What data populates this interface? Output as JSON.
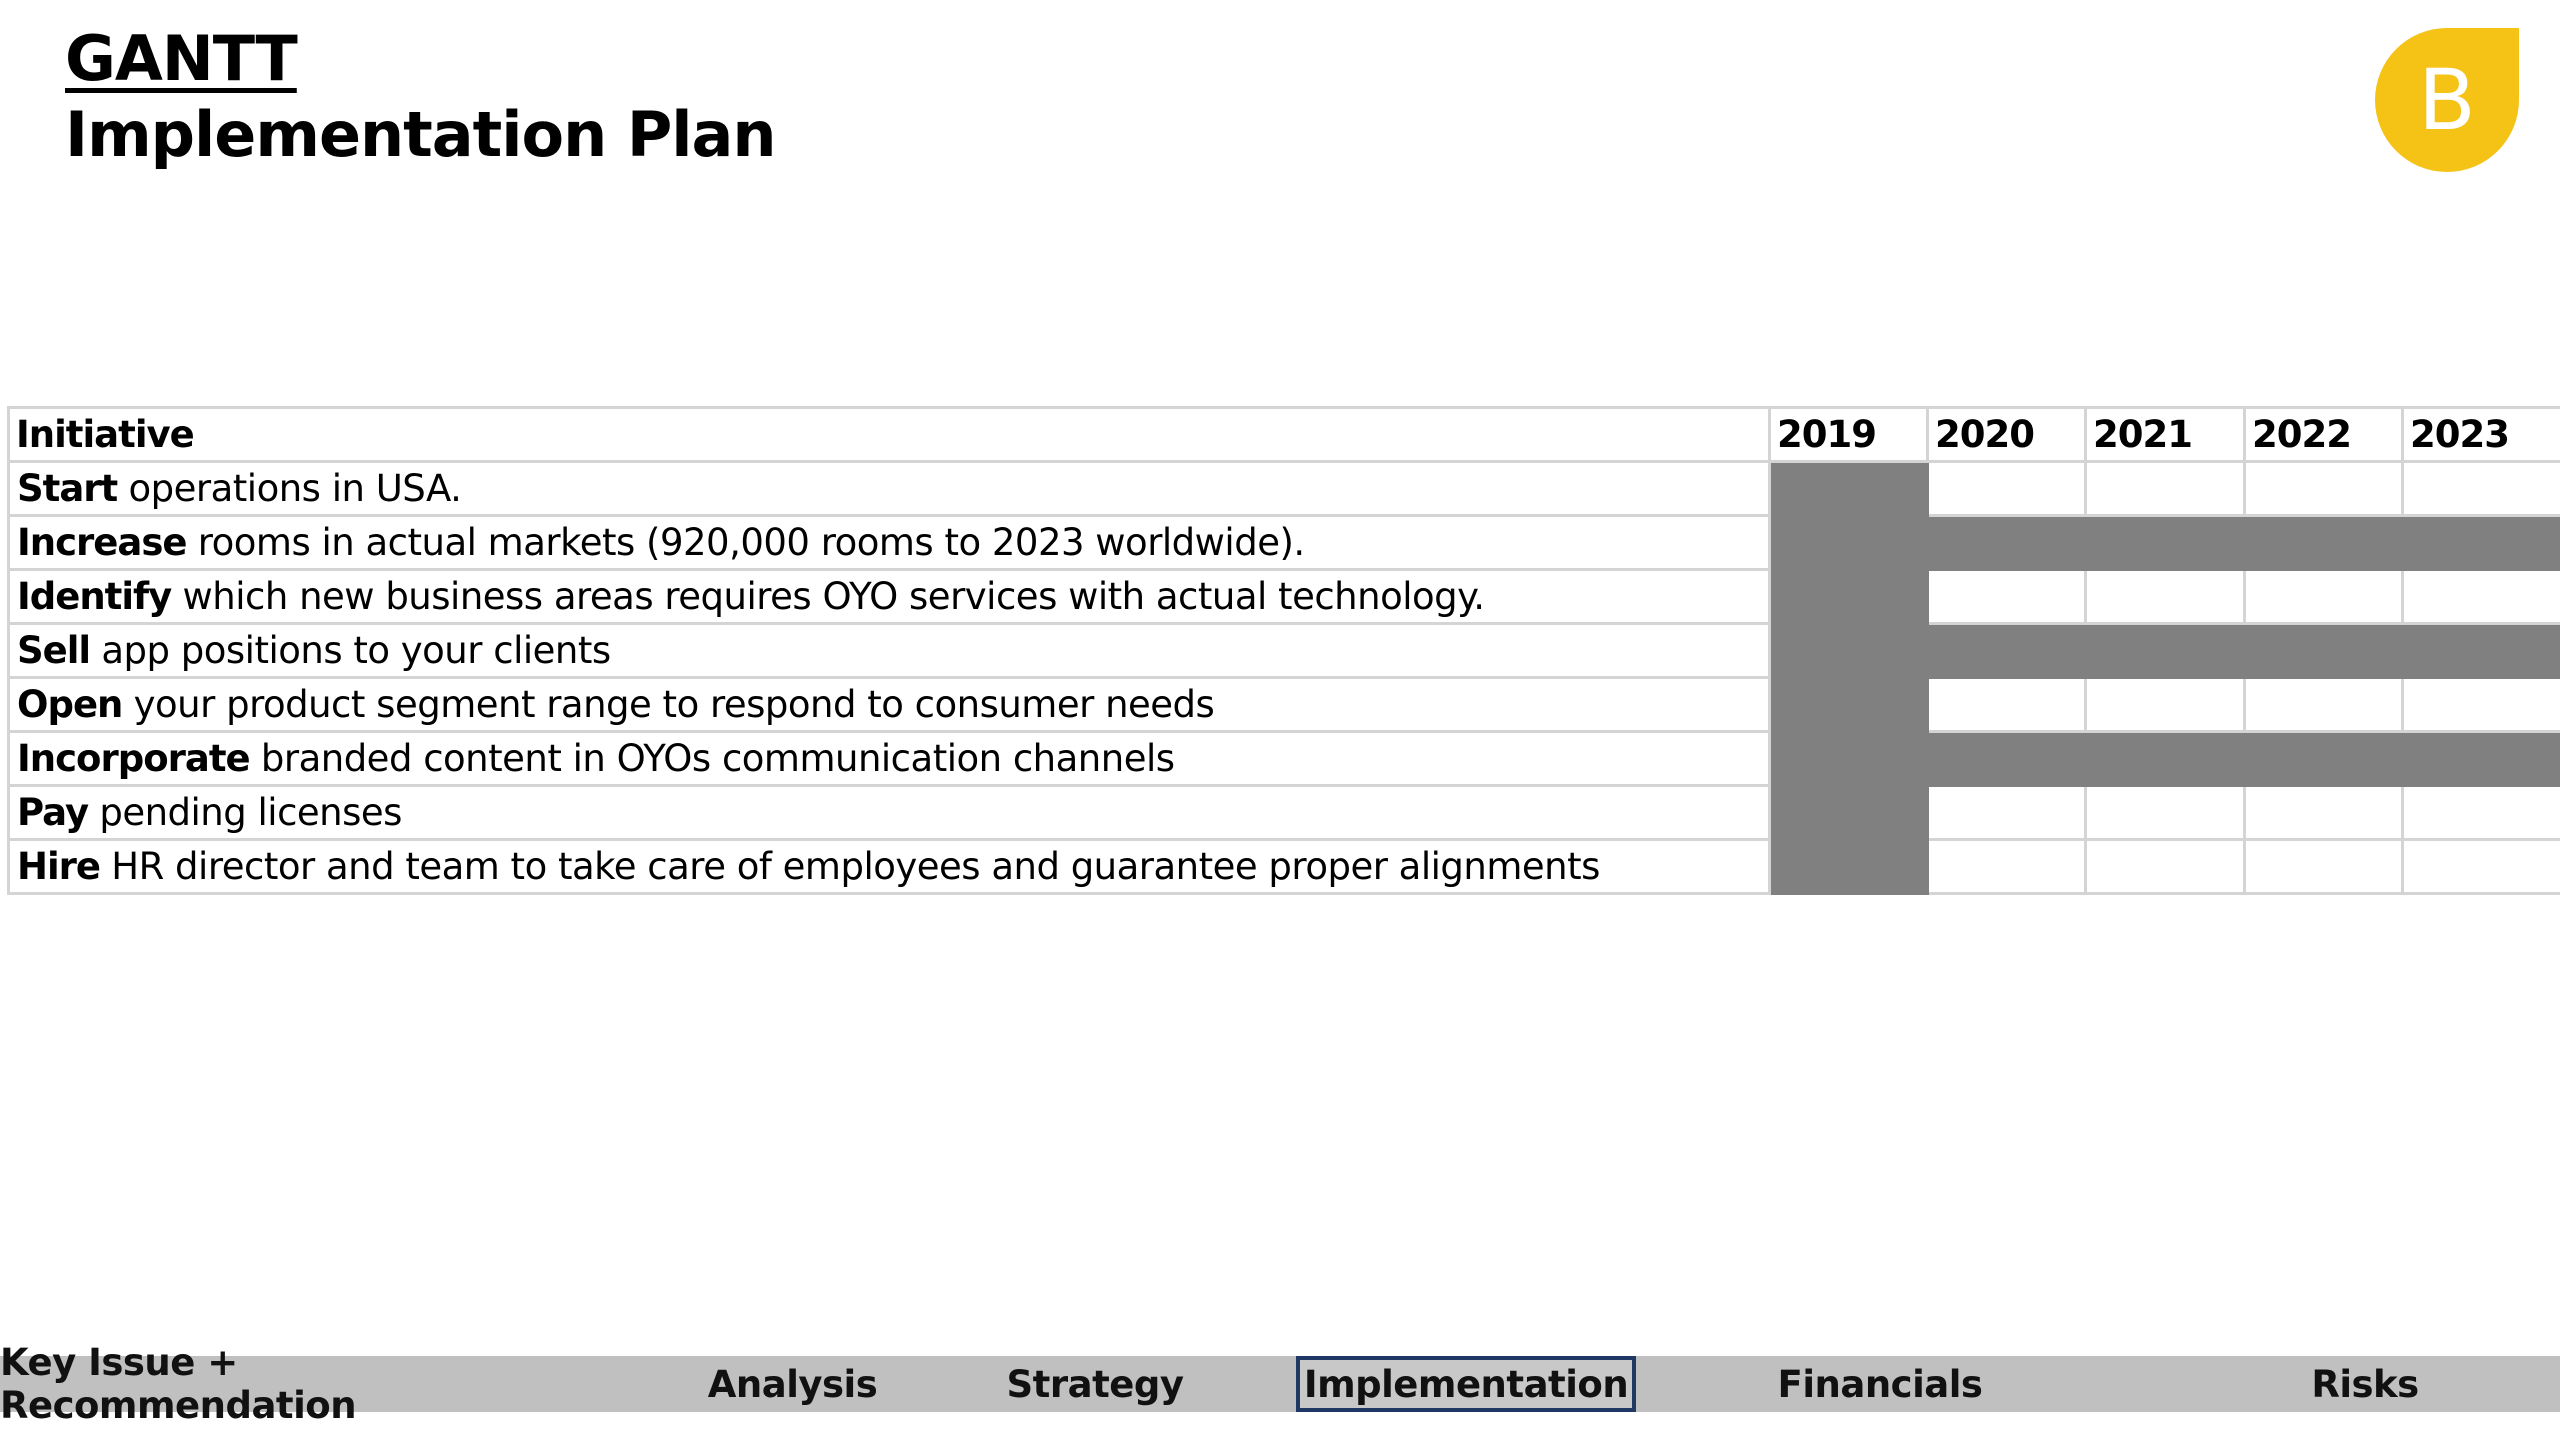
{
  "header": {
    "title_line1": "GANTT",
    "title_line2": "Implementation Plan"
  },
  "logo": {
    "letter": "B",
    "icon": "b-logo-icon",
    "color": "#F5C216"
  },
  "gantt": {
    "initiative_header": "Initiative",
    "years": [
      "2019",
      "2020",
      "2021",
      "2022",
      "2023"
    ],
    "rows": [
      {
        "verb": "Start",
        "rest": " operations in USA.",
        "active": [
          true,
          false,
          false,
          false,
          false
        ]
      },
      {
        "verb": "Increase",
        "rest": " rooms in actual markets (920,000 rooms to 2023 worldwide).",
        "active": [
          true,
          true,
          true,
          true,
          true
        ]
      },
      {
        "verb": "Identify",
        "rest": " which new business areas requires OYO services with actual technology.",
        "active": [
          true,
          false,
          false,
          false,
          false
        ]
      },
      {
        "verb": "Sell",
        "rest": " app positions to your clients",
        "active": [
          true,
          true,
          true,
          true,
          true
        ]
      },
      {
        "verb": "Open",
        "rest": " your product segment range to respond to consumer needs",
        "active": [
          true,
          false,
          false,
          false,
          false
        ]
      },
      {
        "verb": "Incorporate",
        "rest": " branded content in OYOs communication channels",
        "active": [
          true,
          true,
          true,
          true,
          true
        ]
      },
      {
        "verb": "Pay",
        "rest": " pending licenses",
        "active": [
          true,
          false,
          false,
          false,
          false
        ]
      },
      {
        "verb": "Hire",
        "rest": " HR director and team to take care of employees and guarantee proper alignments",
        "active": [
          true,
          false,
          false,
          false,
          false
        ]
      }
    ],
    "fill_color": "#808080"
  },
  "nav": {
    "items": [
      {
        "label": "Key Issue + Recommendation",
        "active": false
      },
      {
        "label": "Analysis",
        "active": false
      },
      {
        "label": "Strategy",
        "active": false
      },
      {
        "label": "Implementation",
        "active": true
      },
      {
        "label": "Financials",
        "active": false
      },
      {
        "label": "Risks",
        "active": false
      }
    ],
    "active_border_color": "#1F3864"
  }
}
